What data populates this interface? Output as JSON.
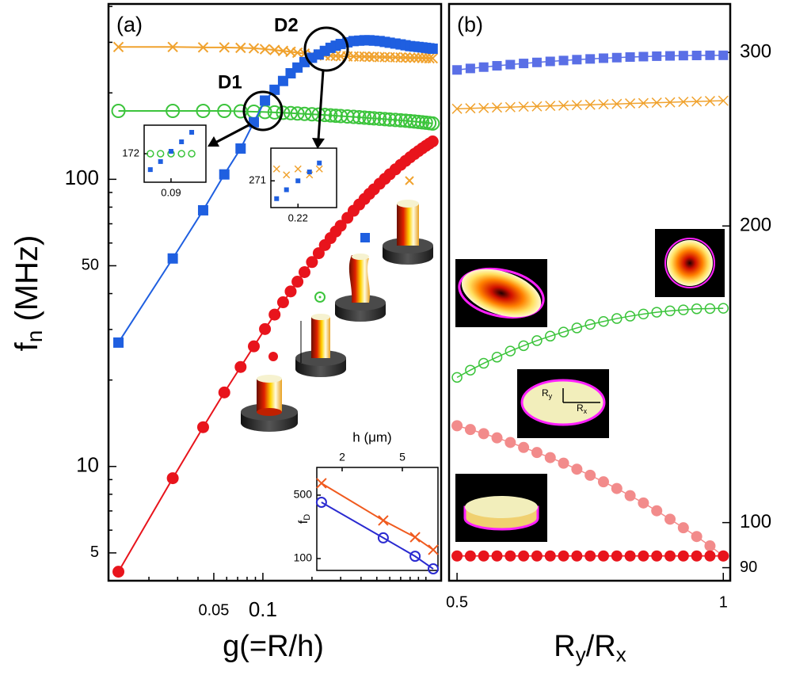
{
  "chart_data": [
    {
      "type": "scatter",
      "label": "(a)",
      "xlabel": "g(=R/h)",
      "ylabel": {
        "main": "f",
        "sub": "n",
        "rest": " (MHz)"
      },
      "annotations": [
        "D1",
        "D2"
      ],
      "xscale": "log",
      "yscale": "log",
      "xlim": [
        0.0113,
        1.24
      ],
      "ylim": [
        4,
        408
      ],
      "xticks": [
        0.05,
        0.1
      ],
      "yticks": [
        5,
        10,
        50,
        100
      ],
      "xminorticks": [
        0.02,
        0.03,
        0.04,
        0.06,
        0.07,
        0.08,
        0.09,
        0.2,
        0.3,
        0.4,
        0.5,
        0.6,
        0.7,
        0.8,
        0.9,
        1
      ],
      "yminorticks": [
        6,
        7,
        8,
        9,
        20,
        30,
        40,
        60,
        70,
        80,
        90,
        200,
        300,
        400
      ],
      "x": [
        0.013,
        0.028,
        0.043,
        0.058,
        0.073,
        0.088,
        0.103,
        0.118,
        0.133,
        0.148,
        0.163,
        0.18,
        0.2,
        0.22,
        0.24,
        0.26,
        0.28,
        0.3,
        0.33,
        0.36,
        0.39,
        0.42,
        0.45,
        0.48,
        0.52,
        0.56,
        0.6,
        0.65,
        0.7,
        0.75,
        0.8,
        0.85,
        0.9,
        0.95,
        1.0,
        1.05,
        1.1
      ],
      "series": [
        {
          "color": "#f0a22e",
          "marker": "x",
          "values": [
            289,
            289,
            288,
            288,
            287,
            286,
            284,
            282,
            280,
            278,
            276,
            274,
            272,
            271,
            270,
            269.5,
            269,
            268.5,
            268,
            268,
            267.5,
            267.5,
            267,
            267,
            266.5,
            266.5,
            266,
            266,
            265.5,
            265.5,
            265,
            265,
            265,
            264.5,
            264.5,
            264,
            264
          ]
        },
        {
          "color": "#3cc43c",
          "marker": "circle",
          "values": [
            173,
            173,
            173,
            173,
            172.5,
            172,
            171.5,
            171,
            170.5,
            170,
            169.5,
            169,
            168.5,
            168,
            167.5,
            167,
            166.5,
            166,
            165.5,
            165,
            164.5,
            164,
            163.5,
            163,
            162.5,
            162,
            161.5,
            161,
            160.5,
            160,
            159.5,
            159,
            158.5,
            158,
            157.5,
            157,
            156.5
          ]
        },
        {
          "color": "#1f5fe0",
          "marker": "square",
          "values": [
            27,
            53,
            78,
            104,
            128,
            158,
            188,
            205,
            220,
            234,
            245,
            256,
            265,
            272,
            280,
            287,
            292,
            296,
            300,
            303,
            304,
            305,
            305,
            304,
            303,
            301,
            299,
            297,
            295,
            293,
            291,
            290,
            289,
            288,
            287,
            286,
            285
          ]
        },
        {
          "color": "#e8141c",
          "marker": "dot",
          "values": [
            4.3,
            9.1,
            13.7,
            18.1,
            22.2,
            26.2,
            30.1,
            33.8,
            37.3,
            40.7,
            44.0,
            47.5,
            51.5,
            55.3,
            59.0,
            62.4,
            65.8,
            68.9,
            73.4,
            77.7,
            81.7,
            85.4,
            89.0,
            92.3,
            96.5,
            100.4,
            104.1,
            108.3,
            112.3,
            115.9,
            119.3,
            122.5,
            125.4,
            128.2,
            130.8,
            133.2,
            135.5
          ]
        }
      ]
    },
    {
      "type": "scatter",
      "line": false,
      "xlim": [
        0.0813,
        0.1013
      ],
      "ylim": [
        160,
        184
      ],
      "xticks": [
        0.09
      ],
      "yticks": [
        172
      ],
      "x": [
        0.0833,
        0.0866,
        0.09,
        0.0934,
        0.0967
      ],
      "series": [
        {
          "color": "#3cc43c",
          "marker": "circle",
          "values": [
            172,
            172,
            172,
            172,
            172
          ]
        },
        {
          "color": "#1f5fe0",
          "marker": "square",
          "values": [
            165.3,
            168.7,
            173,
            177,
            181
          ]
        }
      ]
    },
    {
      "type": "scatter",
      "line": false,
      "xlim": [
        0.2035,
        0.2435
      ],
      "ylim": [
        262,
        282
      ],
      "xticks": [
        0.22
      ],
      "yticks": [
        271
      ],
      "x": [
        0.207,
        0.213,
        0.22,
        0.227,
        0.233
      ],
      "series": [
        {
          "color": "#f0a22e",
          "marker": "x",
          "values": [
            275,
            273,
            275,
            273,
            275
          ]
        },
        {
          "color": "#1f5fe0",
          "marker": "square",
          "values": [
            265,
            268,
            271,
            274,
            277
          ]
        }
      ]
    },
    {
      "type": "scatter",
      "xlabel": "h (μm)",
      "ylabel": {
        "main": "f",
        "sub": "D"
      },
      "xscale": "log",
      "yscale": "log",
      "xaxis_side": "top",
      "xlim": [
        1.36,
        8.6
      ],
      "ylim": [
        74,
        1010
      ],
      "xticks": [
        2,
        5
      ],
      "yticks": [
        100,
        500
      ],
      "x": [
        1.46,
        3.74,
        6.07,
        8.0
      ],
      "series": [
        {
          "name": "D2",
          "color": "#f05a1e",
          "marker": "x",
          "values": [
            676,
            263,
            172,
            125
          ]
        },
        {
          "name": "D1",
          "color": "#2a2ad0",
          "marker": "circle",
          "values": [
            417,
            169,
            106,
            77
          ]
        }
      ]
    },
    {
      "type": "scatter",
      "label": "(b)",
      "xlabel": {
        "main": "R",
        "sub": "y",
        "mid": "/R",
        "sub2": "x"
      },
      "image_labels": [
        {
          "main": "R",
          "sub": "y"
        },
        {
          "main": "R",
          "sub": "x"
        }
      ],
      "yscale": "log",
      "yaxis_side": "right",
      "xlim": [
        0.485,
        1.013
      ],
      "ylim": [
        87.3,
        336
      ],
      "xticks": [
        0.5,
        1
      ],
      "yticks": [
        90,
        100,
        200,
        300
      ],
      "x": [
        0.5,
        0.525,
        0.55,
        0.575,
        0.6,
        0.625,
        0.65,
        0.675,
        0.7,
        0.725,
        0.75,
        0.775,
        0.8,
        0.825,
        0.85,
        0.875,
        0.9,
        0.925,
        0.95,
        0.975,
        1.0
      ],
      "series": [
        {
          "color": "#5a6fe6",
          "marker": "square",
          "values": [
            288,
            289.0,
            289.9,
            290.8,
            291.6,
            292.4,
            293.1,
            293.8,
            294.4,
            295.0,
            295.5,
            296.0,
            296.4,
            296.8,
            297.1,
            297.4,
            297.6,
            297.8,
            297.9,
            298.0,
            298.0
          ]
        },
        {
          "color": "#f0a22e",
          "marker": "x",
          "values": [
            263.0,
            263.3,
            263.5,
            263.8,
            264.0,
            264.3,
            264.5,
            264.8,
            265.0,
            265.3,
            265.5,
            265.8,
            266.0,
            266.3,
            266.5,
            266.8,
            267.0,
            267.3,
            267.5,
            267.8,
            268.0
          ]
        },
        {
          "color": "#3cc43c",
          "marker": "circle",
          "values": [
            140.4,
            142.8,
            145.1,
            147.2,
            149.3,
            151.2,
            153.0,
            154.6,
            156.1,
            157.6,
            158.9,
            160.0,
            161.1,
            162.0,
            162.8,
            163.5,
            164.0,
            164.4,
            164.8,
            164.9,
            165.0
          ]
        },
        {
          "color": "#f28b8b",
          "marker": "dot",
          "values": [
            125.4,
            124.3,
            123.1,
            121.9,
            120.6,
            119.2,
            117.8,
            116.4,
            114.9,
            113.3,
            111.7,
            110.0,
            108.3,
            106.5,
            104.7,
            102.8,
            100.8,
            98.8,
            96.8,
            94.7,
            92.5
          ]
        },
        {
          "color": "#e8141c",
          "marker": "dot",
          "values": [
            92.5,
            92.5,
            92.5,
            92.5,
            92.5,
            92.5,
            92.5,
            92.5,
            92.5,
            92.5,
            92.5,
            92.5,
            92.5,
            92.5,
            92.5,
            92.5,
            92.5,
            92.5,
            92.5,
            92.5,
            92.5
          ]
        }
      ]
    }
  ]
}
